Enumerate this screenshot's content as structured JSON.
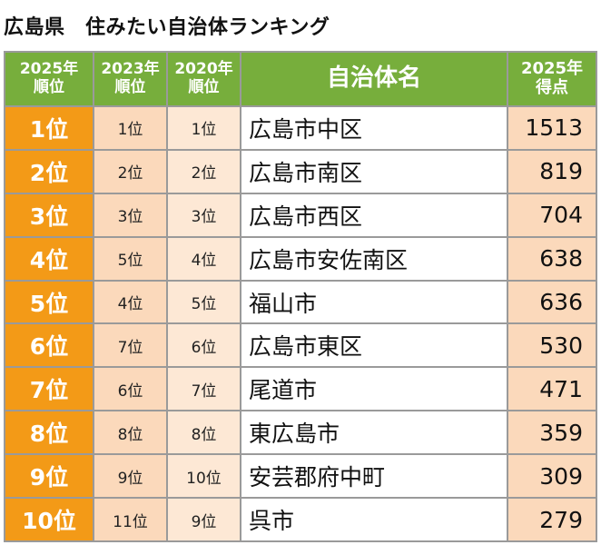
{
  "title": "広島県　住みたい自治体ランキング",
  "headers": {
    "rank_2025": [
      "2025年",
      "順位"
    ],
    "rank_2023": [
      "2023年",
      "順位"
    ],
    "rank_2020": [
      "2020年",
      "順位"
    ],
    "name": "自治体名",
    "score_2025": [
      "2025年",
      "得点"
    ]
  },
  "rows": [
    {
      "rank_2025": "1位",
      "rank_2023": "1位",
      "rank_2020": "1位",
      "name": "広島市中区",
      "score": "1513"
    },
    {
      "rank_2025": "2位",
      "rank_2023": "2位",
      "rank_2020": "2位",
      "name": "広島市南区",
      "score": "819"
    },
    {
      "rank_2025": "3位",
      "rank_2023": "3位",
      "rank_2020": "3位",
      "name": "広島市西区",
      "score": "704"
    },
    {
      "rank_2025": "4位",
      "rank_2023": "5位",
      "rank_2020": "4位",
      "name": "広島市安佐南区",
      "score": "638"
    },
    {
      "rank_2025": "5位",
      "rank_2023": "4位",
      "rank_2020": "5位",
      "name": "福山市",
      "score": "636"
    },
    {
      "rank_2025": "6位",
      "rank_2023": "7位",
      "rank_2020": "6位",
      "name": "広島市東区",
      "score": "530"
    },
    {
      "rank_2025": "7位",
      "rank_2023": "6位",
      "rank_2020": "7位",
      "name": "尾道市",
      "score": "471"
    },
    {
      "rank_2025": "8位",
      "rank_2023": "8位",
      "rank_2020": "8位",
      "name": "東広島市",
      "score": "359"
    },
    {
      "rank_2025": "9位",
      "rank_2023": "9位",
      "rank_2020": "10位",
      "name": "安芸郡府中町",
      "score": "309"
    },
    {
      "rank_2025": "10位",
      "rank_2023": "11位",
      "rank_2020": "9位",
      "name": "呉市",
      "score": "279"
    }
  ],
  "colors": {
    "header_green": "#77ae3c",
    "rank_orange": "#f39a17",
    "peach": "#fbd9bb",
    "light_peach": "#fde8d5",
    "border_gray": "#9a9a9a"
  }
}
